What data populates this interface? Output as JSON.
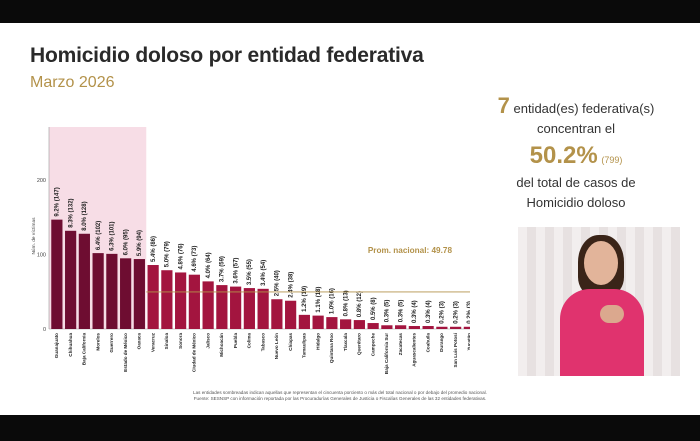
{
  "title": "Homicidio doloso por entidad federativa",
  "subtitle": "Marzo 2026",
  "summary": {
    "count": "7",
    "line1": "entidad(es) federativa(s)",
    "line2": "concentran el",
    "percent": "50.2%",
    "cases": "(799)",
    "line3": "del total de casos de",
    "line4": "Homicidio doloso"
  },
  "footnote": {
    "line1": "Las entidades sombreadas indican aquellas que representan el cincuenta porciento o más del total nacional o por debajo del promedio nacional.",
    "line2": "Fuente: SESNSP con información reportada por las Procuradurías Generales de Justicia o Fiscalías Generales de las 32 entidades federativas."
  },
  "colors": {
    "bar_primary": "#6e0d31",
    "bar_secondary": "#a3153f",
    "highlight": "#f7dde6",
    "average_line": "#b3924a",
    "accent": "#b3924a"
  },
  "chart_data": {
    "type": "bar",
    "ylabel": "Núm. de víctimas",
    "ylim": [
      0,
      250
    ],
    "yticks": [
      0,
      100,
      200
    ],
    "highlighted_count": 7,
    "average": {
      "label": "Prom. nacional: 49.78",
      "value": 49.78
    },
    "categories": [
      "Guanajuato",
      "Chihuahua",
      "Baja California",
      "Morelos",
      "Guerrero",
      "Estado de México",
      "Oaxaca",
      "Veracruz",
      "Sinaloa",
      "Sonora",
      "Ciudad de México",
      "Jalisco",
      "Michoacán",
      "Puebla",
      "Colima",
      "Tabasco",
      "Nuevo León",
      "Chiapas",
      "Tamaulipas",
      "Hidalgo",
      "Quintana Roo",
      "Tlaxcala",
      "Querétaro",
      "Campeche",
      "Baja California Sur",
      "Zacatecas",
      "Aguascalientes",
      "Coahuila",
      "Durango",
      "San Luis Potosí",
      "Yucatán",
      "Nayarit"
    ],
    "values": [
      147,
      132,
      128,
      102,
      101,
      95,
      94,
      86,
      79,
      76,
      73,
      64,
      59,
      57,
      55,
      54,
      40,
      38,
      19,
      18,
      16,
      13,
      12,
      8,
      5,
      5,
      4,
      4,
      3,
      3,
      3,
      0
    ],
    "labels": [
      "9.2% (147)",
      "8.3% (132)",
      "8.0% (128)",
      "6.4% (102)",
      "6.3% (101)",
      "6.0% (95)",
      "5.9% (94)",
      "5.4% (86)",
      "5.0% (79)",
      "4.8% (76)",
      "4.6% (73)",
      "4.0% (64)",
      "3.7% (59)",
      "3.6% (57)",
      "3.5% (55)",
      "3.4% (54)",
      "2.5% (40)",
      "2.4% (38)",
      "1.2% (19)",
      "1.1% (18)",
      "1.0% (16)",
      "0.8% (13)",
      "0.8% (12)",
      "0.5% (8)",
      "0.3% (5)",
      "0.3% (5)",
      "0.3% (4)",
      "0.3% (4)",
      "0.2% (3)",
      "0.2% (3)",
      "0.2% (3)",
      "0.0% (0)"
    ]
  }
}
